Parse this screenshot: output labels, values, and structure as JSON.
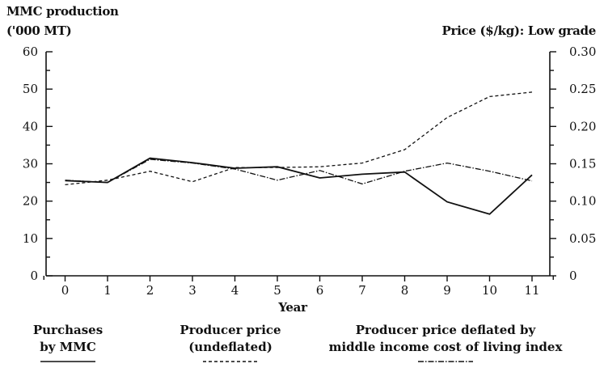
{
  "chart_data": {
    "type": "line",
    "y_left_title": [
      "MMC production",
      "('000 MT)"
    ],
    "y_right_title": "Price ($/kg): Low grade",
    "xlabel": "Year",
    "x": [
      0,
      1,
      2,
      3,
      4,
      5,
      6,
      7,
      8,
      9,
      10,
      11
    ],
    "x_tick_labels": [
      "0",
      "1",
      "2",
      "3",
      "4",
      "5",
      "6",
      "7",
      "8",
      "9",
      "10",
      "11"
    ],
    "ylim_left": [
      0,
      60
    ],
    "y_left_ticks": [
      "0",
      "10",
      "20",
      "30",
      "40",
      "50",
      "60"
    ],
    "ylim_right": [
      0,
      0.3
    ],
    "y_right_ticks": [
      "0",
      "0.05",
      "0.10",
      "0.15",
      "0.20",
      "0.25",
      "0.30"
    ],
    "grid": false,
    "legend_position": "bottom",
    "series": [
      {
        "name": "Purchases by MMC",
        "legend_lines": [
          "Purchases",
          "by MMC"
        ],
        "axis": "left",
        "style": "solid",
        "values": [
          25.5,
          25.0,
          31.5,
          30.3,
          28.8,
          29.2,
          26.2,
          27.2,
          27.8,
          19.8,
          16.5,
          27.0
        ]
      },
      {
        "name": "Producer price (undeflated)",
        "legend_lines": [
          "Producer price",
          "(undeflated)"
        ],
        "axis": "right",
        "style": "dashed",
        "values": [
          0.122,
          0.128,
          0.14,
          0.126,
          0.145,
          0.145,
          0.146,
          0.151,
          0.169,
          0.212,
          0.24,
          0.246
        ]
      },
      {
        "name": "Producer price deflated by middle income cost of living index",
        "legend_lines": [
          "Producer price deflated by",
          "middle income cost of living index"
        ],
        "axis": "right",
        "style": "dashdot",
        "values": [
          0.128,
          0.125,
          0.156,
          0.151,
          0.143,
          0.128,
          0.141,
          0.123,
          0.14,
          0.151,
          0.14,
          0.127
        ]
      }
    ]
  }
}
